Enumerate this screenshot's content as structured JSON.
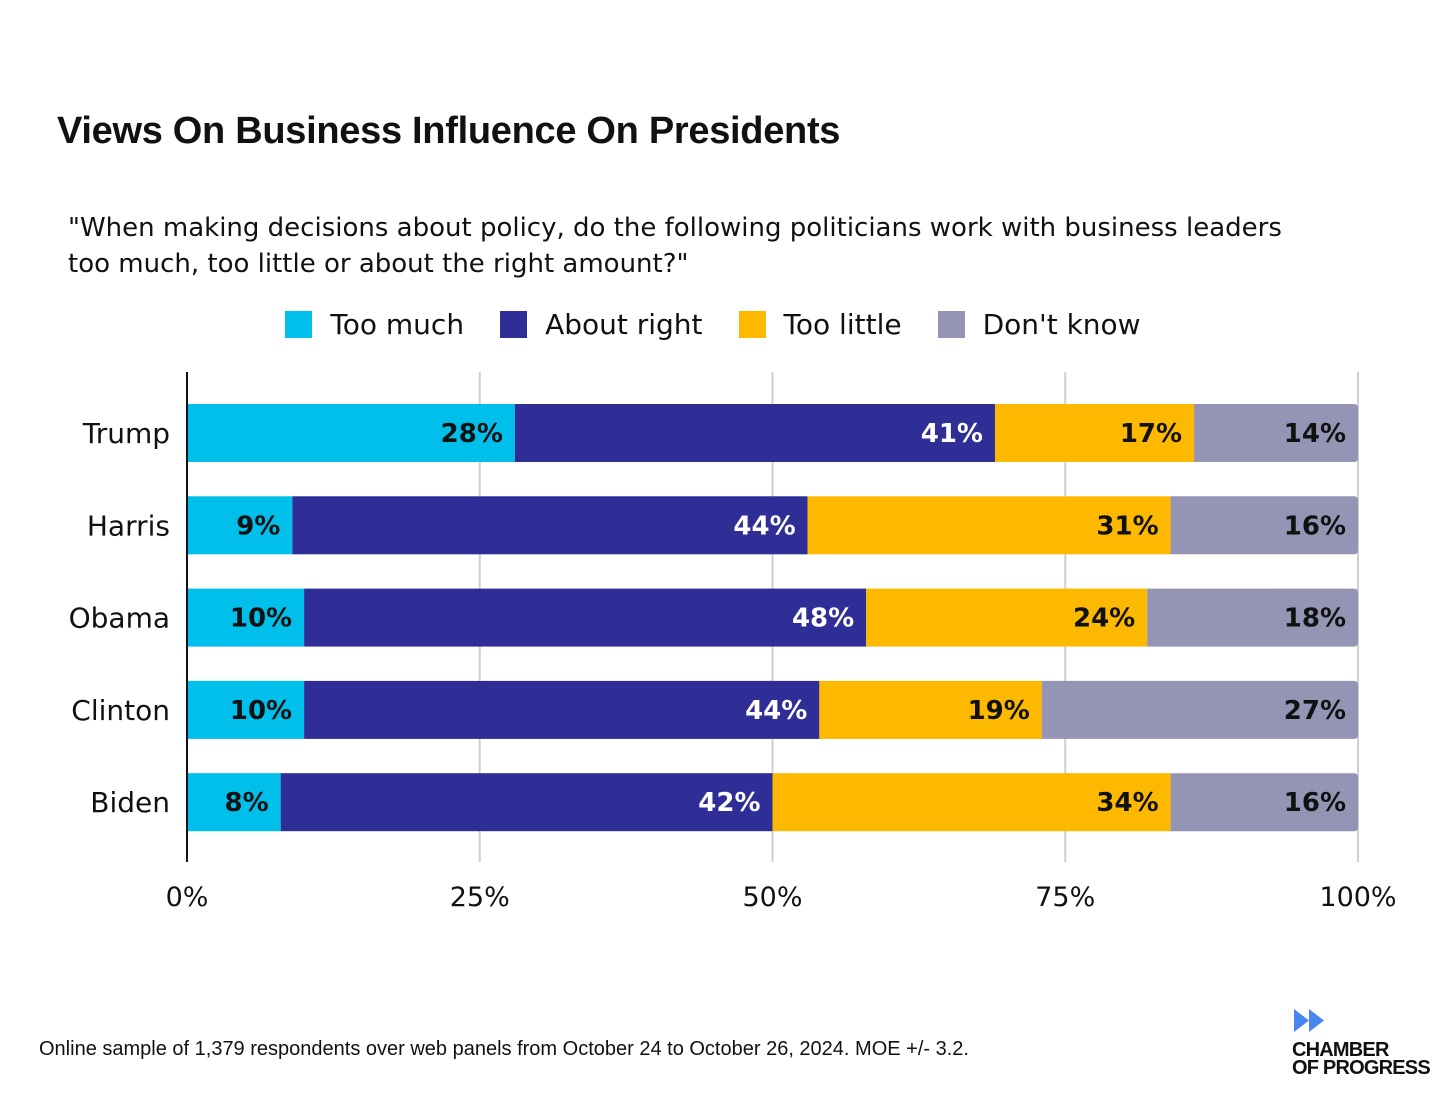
{
  "chart_data": {
    "type": "bar",
    "orientation": "horizontal",
    "stacked": true,
    "title": "Views On Business Influence On Presidents",
    "subtitle": "\"When making decisions about policy, do the following politicians work with business leaders too much, too little or about the right amount?\"",
    "categories": [
      "Trump",
      "Harris",
      "Obama",
      "Clinton",
      "Biden"
    ],
    "series": [
      {
        "name": "Too much",
        "color": "#00BFEA",
        "label_color": "#111111",
        "values": [
          28,
          9,
          10,
          10,
          8
        ]
      },
      {
        "name": "About right",
        "color": "#2E2E96",
        "label_color": "#FFFFFF",
        "values": [
          41,
          44,
          48,
          44,
          42
        ]
      },
      {
        "name": "Too little",
        "color": "#FDB900",
        "label_color": "#111111",
        "values": [
          17,
          31,
          24,
          19,
          34
        ]
      },
      {
        "name": "Don't know",
        "color": "#9494B4",
        "label_color": "#111111",
        "values": [
          14,
          16,
          18,
          27,
          16
        ]
      }
    ],
    "xlim": [
      0,
      100
    ],
    "xticks": [
      0,
      25,
      50,
      75,
      100
    ],
    "xtick_labels": [
      "0%",
      "25%",
      "50%",
      "75%",
      "100%"
    ],
    "grid": true,
    "legend_position": "top"
  },
  "footer": "Online sample of 1,379 respondents over web panels from October 24 to October 26, 2024. MOE +/- 3.2.",
  "logo": {
    "line1": "CHAMBER",
    "line2": "OF PROGRESS",
    "color": "#4A86F0"
  }
}
